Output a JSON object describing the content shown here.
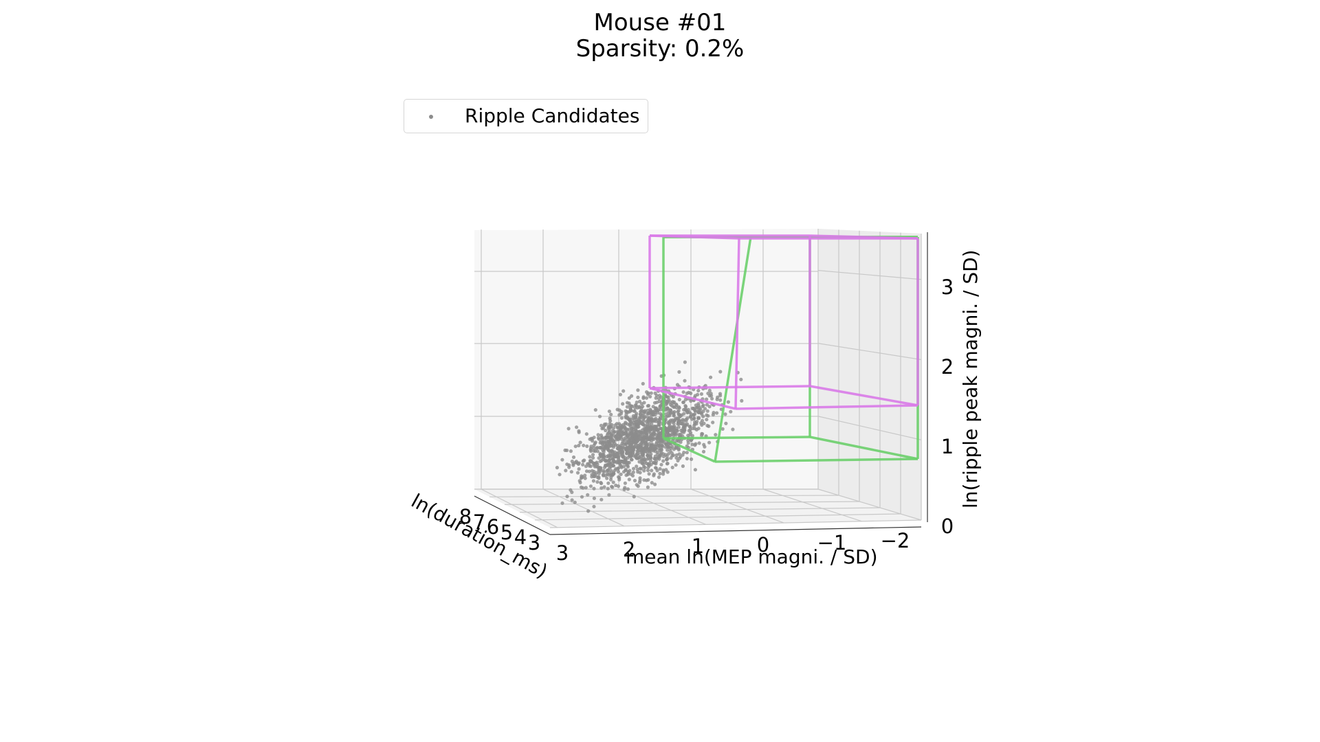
{
  "chart_data": {
    "type": "scatter",
    "projection": "3d",
    "title": "Mouse #01",
    "subtitle": "Sparsity: 0.2%",
    "xlabel": "mean ln(MEP magni. / SD)",
    "ylabel": "ln(duration_ms)",
    "zlabel": "ln(ripple peak magni. / SD)",
    "x_ticks": [
      "3",
      "2",
      "1",
      "0",
      "−1",
      "−2"
    ],
    "y_ticks": [
      "8",
      "7",
      "6",
      "5",
      "4",
      "3"
    ],
    "z_ticks": [
      "0",
      "1",
      "2",
      "3"
    ],
    "xlim": [
      3.2,
      -2.3
    ],
    "ylim": [
      8.3,
      2.5
    ],
    "zlim": [
      0,
      3.4
    ],
    "legend": {
      "position": "upper-left",
      "entries": [
        "Ripple Candidates"
      ]
    },
    "grid": true,
    "series": [
      {
        "name": "Ripple Candidates",
        "color": "#8c8c8c",
        "n_points": 1500,
        "cluster_center": {
          "x": 1.0,
          "z": 1.1
        },
        "x_range": [
          2.8,
          -1.0
        ],
        "z_range": [
          0.3,
          2.6
        ]
      }
    ],
    "boxes": [
      {
        "color": "#6ccf6c",
        "x_range": [
          1.2,
          -2.3
        ],
        "z_range": [
          0.8,
          3.4
        ]
      },
      {
        "color": "#d97be8",
        "x_range": [
          1.8,
          -2.3
        ],
        "z_range": [
          1.6,
          3.4
        ]
      }
    ]
  }
}
